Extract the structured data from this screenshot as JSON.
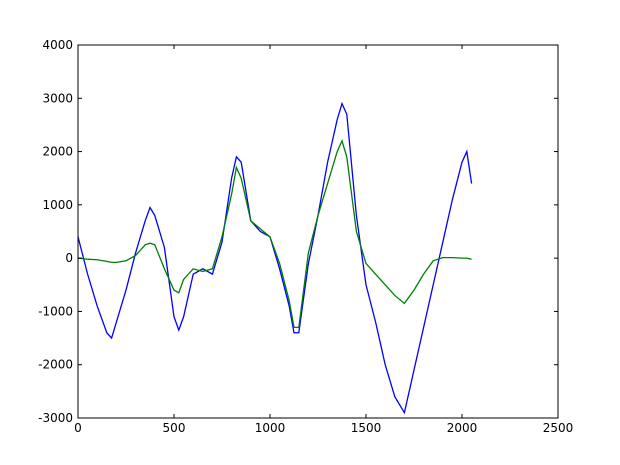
{
  "chart_data": {
    "type": "line",
    "x": [
      0,
      50,
      100,
      150,
      175,
      200,
      250,
      300,
      350,
      375,
      400,
      450,
      500,
      525,
      550,
      600,
      650,
      700,
      750,
      800,
      825,
      850,
      900,
      950,
      1000,
      1050,
      1100,
      1125,
      1150,
      1200,
      1250,
      1300,
      1350,
      1375,
      1400,
      1450,
      1500,
      1550,
      1600,
      1650,
      1700,
      1750,
      1800,
      1850,
      1900,
      1950,
      2000,
      2025,
      2050
    ],
    "series": [
      {
        "color": "#0000ff",
        "values": [
          400,
          -300,
          -900,
          -1400,
          -1500,
          -1200,
          -600,
          100,
          700,
          950,
          800,
          200,
          -1100,
          -1350,
          -1100,
          -300,
          -200,
          -300,
          300,
          1500,
          1900,
          1800,
          700,
          500,
          400,
          -200,
          -900,
          -1400,
          -1400,
          -100,
          800,
          1800,
          2600,
          2900,
          2700,
          800,
          -500,
          -1200,
          -2000,
          -2600,
          -2900,
          -2100,
          -1300,
          -500,
          300,
          1100,
          1800,
          2000,
          1400
        ]
      },
      {
        "color": "#008000",
        "values": [
          0,
          -20,
          -30,
          -60,
          -80,
          -80,
          -50,
          50,
          250,
          280,
          250,
          -200,
          -600,
          -650,
          -400,
          -200,
          -250,
          -200,
          400,
          1200,
          1700,
          1500,
          700,
          550,
          400,
          -100,
          -800,
          -1300,
          -1300,
          100,
          800,
          1400,
          2000,
          2200,
          1900,
          500,
          -100,
          -300,
          -500,
          -700,
          -850,
          -600,
          -300,
          -50,
          10,
          10,
          0,
          0,
          -20
        ]
      }
    ],
    "xlim": [
      0,
      2500
    ],
    "xticks": [
      0,
      500,
      1000,
      1500,
      2000,
      2500
    ],
    "ylim": [
      -3000,
      4000
    ],
    "yticks": [
      -3000,
      -2000,
      -1000,
      0,
      1000,
      2000,
      3000,
      4000
    ],
    "grid": false
  }
}
